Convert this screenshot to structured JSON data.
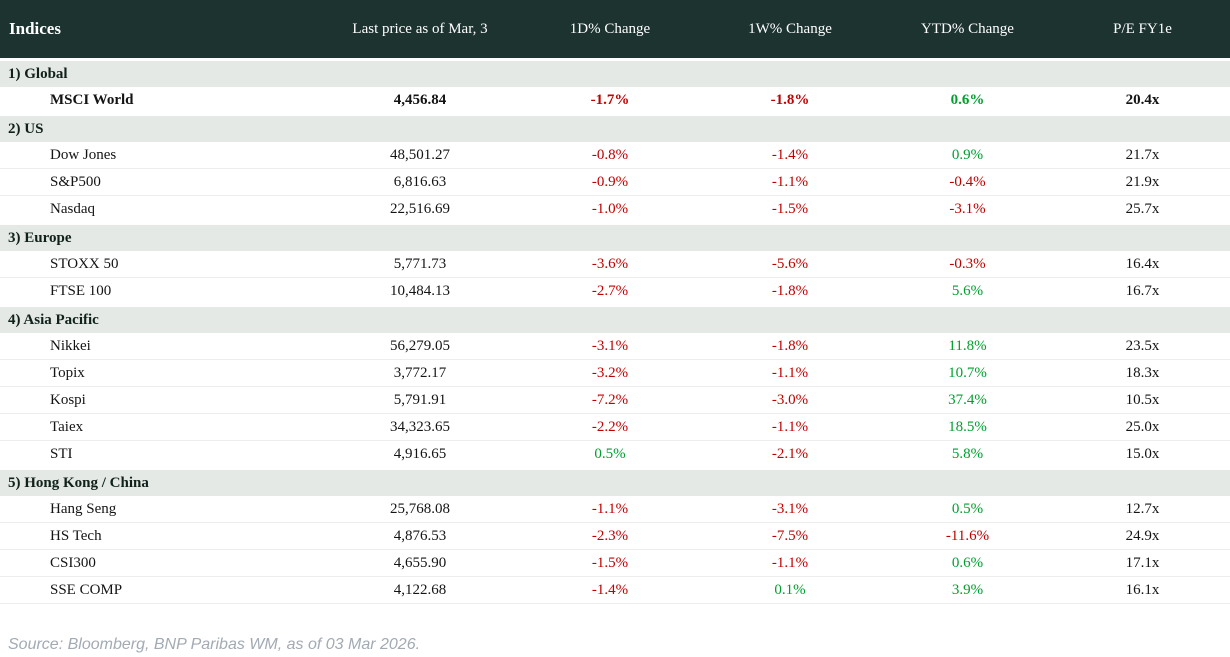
{
  "chart_data": {
    "type": "table",
    "title": "Indices",
    "columns": [
      "Indices",
      "Last price as of Mar, 3",
      "1D% Change",
      "1W% Change",
      "YTD% Change",
      "P/E FY1e"
    ],
    "sections": [
      {
        "label": "1) Global",
        "rows": [
          {
            "name": "MSCI World",
            "bold": true,
            "last_price": "4,456.84",
            "change_1d": "-1.7%",
            "change_1w": "-1.8%",
            "change_ytd": "0.6%",
            "pe_fy1e": "20.4x"
          }
        ]
      },
      {
        "label": "2) US",
        "rows": [
          {
            "name": "Dow Jones",
            "bold": false,
            "last_price": "48,501.27",
            "change_1d": "-0.8%",
            "change_1w": "-1.4%",
            "change_ytd": "0.9%",
            "pe_fy1e": "21.7x"
          },
          {
            "name": "S&P500",
            "bold": false,
            "last_price": "6,816.63",
            "change_1d": "-0.9%",
            "change_1w": "-1.1%",
            "change_ytd": "-0.4%",
            "pe_fy1e": "21.9x"
          },
          {
            "name": "Nasdaq",
            "bold": false,
            "last_price": "22,516.69",
            "change_1d": "-1.0%",
            "change_1w": "-1.5%",
            "change_ytd": "-3.1%",
            "pe_fy1e": "25.7x"
          }
        ]
      },
      {
        "label": "3) Europe",
        "rows": [
          {
            "name": "STOXX 50",
            "bold": false,
            "last_price": "5,771.73",
            "change_1d": "-3.6%",
            "change_1w": "-5.6%",
            "change_ytd": "-0.3%",
            "pe_fy1e": "16.4x"
          },
          {
            "name": "FTSE 100",
            "bold": false,
            "last_price": "10,484.13",
            "change_1d": "-2.7%",
            "change_1w": "-1.8%",
            "change_ytd": "5.6%",
            "pe_fy1e": "16.7x"
          }
        ]
      },
      {
        "label": "4) Asia Pacific",
        "rows": [
          {
            "name": "Nikkei",
            "bold": false,
            "last_price": "56,279.05",
            "change_1d": "-3.1%",
            "change_1w": "-1.8%",
            "change_ytd": "11.8%",
            "pe_fy1e": "23.5x"
          },
          {
            "name": "Topix",
            "bold": false,
            "last_price": "3,772.17",
            "change_1d": "-3.2%",
            "change_1w": "-1.1%",
            "change_ytd": "10.7%",
            "pe_fy1e": "18.3x"
          },
          {
            "name": "Kospi",
            "bold": false,
            "last_price": "5,791.91",
            "change_1d": "-7.2%",
            "change_1w": "-3.0%",
            "change_ytd": "37.4%",
            "pe_fy1e": "10.5x"
          },
          {
            "name": "Taiex",
            "bold": false,
            "last_price": "34,323.65",
            "change_1d": "-2.2%",
            "change_1w": "-1.1%",
            "change_ytd": "18.5%",
            "pe_fy1e": "25.0x"
          },
          {
            "name": "STI",
            "bold": false,
            "last_price": "4,916.65",
            "change_1d": "0.5%",
            "change_1w": "-2.1%",
            "change_ytd": "5.8%",
            "pe_fy1e": "15.0x"
          }
        ]
      },
      {
        "label": "5) Hong Kong / China",
        "rows": [
          {
            "name": "Hang Seng",
            "bold": false,
            "last_price": "25,768.08",
            "change_1d": "-1.1%",
            "change_1w": "-3.1%",
            "change_ytd": "0.5%",
            "pe_fy1e": "12.7x"
          },
          {
            "name": "HS Tech",
            "bold": false,
            "last_price": "4,876.53",
            "change_1d": "-2.3%",
            "change_1w": "-7.5%",
            "change_ytd": "-11.6%",
            "pe_fy1e": "24.9x"
          },
          {
            "name": "CSI300",
            "bold": false,
            "last_price": "4,655.90",
            "change_1d": "-1.5%",
            "change_1w": "-1.1%",
            "change_ytd": "0.6%",
            "pe_fy1e": "17.1x"
          },
          {
            "name": "SSE COMP",
            "bold": false,
            "last_price": "4,122.68",
            "change_1d": "-1.4%",
            "change_1w": "0.1%",
            "change_ytd": "3.9%",
            "pe_fy1e": "16.1x"
          }
        ]
      }
    ]
  },
  "footer": {
    "source": "Source: Bloomberg, BNP Paribas WM, as of 03 Mar 2026."
  },
  "colors": {
    "header_background": "#1c332f",
    "section_background": "#e4e9e5",
    "negative": "#c00000",
    "positive": "#00a02e",
    "footer_text": "#a2aab2"
  }
}
